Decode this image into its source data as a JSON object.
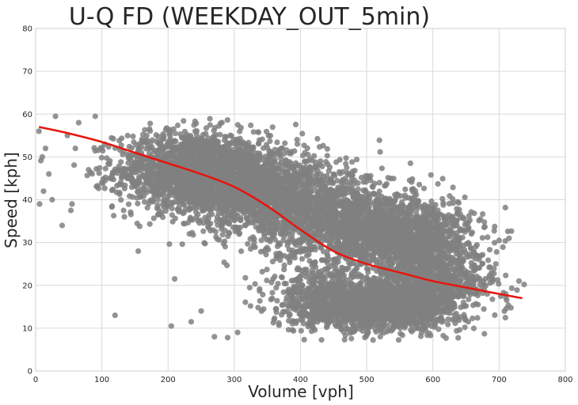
{
  "chart_data": {
    "type": "scatter",
    "title": "U-Q FD (WEEKDAY_OUT_5min)",
    "xlabel": "Volume [vph]",
    "ylabel": "Speed [kph]",
    "xlim": [
      0,
      800
    ],
    "ylim": [
      0,
      80
    ],
    "xticks": [
      0,
      100,
      200,
      300,
      400,
      500,
      600,
      700,
      800
    ],
    "yticks": [
      0,
      10,
      20,
      30,
      40,
      50,
      60,
      70,
      80
    ],
    "xtick_labels": [
      "0",
      "100",
      "200",
      "300",
      "400",
      "500",
      "600",
      "700",
      "800"
    ],
    "ytick_labels": [
      "0",
      "10",
      "20",
      "30",
      "40",
      "50",
      "60",
      "70",
      "80"
    ],
    "grid": true,
    "colors": {
      "points": "#808080",
      "fit": "#e8140c",
      "grid": "#d9d9d9",
      "frame": "#cccccc"
    },
    "point_clusters": [
      {
        "x_mean": 230,
        "x_sd": 55,
        "y_mean": 47,
        "y_sd": 4.5,
        "count": 1500
      },
      {
        "x_mean": 320,
        "x_sd": 55,
        "y_mean": 43,
        "y_sd": 5,
        "count": 1300
      },
      {
        "x_mean": 420,
        "x_sd": 55,
        "y_mean": 37,
        "y_sd": 5,
        "count": 1100
      },
      {
        "x_mean": 530,
        "x_sd": 50,
        "y_mean": 32,
        "y_sd": 5,
        "count": 1200
      },
      {
        "x_mean": 600,
        "x_sd": 40,
        "y_mean": 29,
        "y_sd": 5,
        "count": 500
      },
      {
        "x_mean": 520,
        "x_sd": 60,
        "y_mean": 15,
        "y_sd": 3,
        "count": 1400
      },
      {
        "x_mean": 430,
        "x_sd": 40,
        "y_mean": 18,
        "y_sd": 4,
        "count": 350
      },
      {
        "x_mean": 600,
        "x_sd": 45,
        "y_mean": 20,
        "y_sd": 3,
        "count": 500
      }
    ],
    "outlier_points": [
      [
        5,
        56
      ],
      [
        10,
        50
      ],
      [
        15,
        52
      ],
      [
        20,
        46
      ],
      [
        25,
        40
      ],
      [
        30,
        59.5
      ],
      [
        40,
        34
      ],
      [
        55,
        39
      ],
      [
        60,
        52
      ],
      [
        65,
        58
      ],
      [
        80,
        47
      ],
      [
        90,
        59.5
      ],
      [
        120,
        13
      ],
      [
        155,
        28
      ],
      [
        185,
        40
      ],
      [
        205,
        10.5
      ],
      [
        210,
        21.5
      ],
      [
        235,
        11.5
      ],
      [
        270,
        8
      ],
      [
        290,
        7.8
      ],
      [
        305,
        9
      ],
      [
        6,
        39
      ],
      [
        12,
        42
      ],
      [
        48,
        55
      ],
      [
        100,
        44
      ],
      [
        700,
        30.5
      ],
      [
        715,
        31
      ],
      [
        730,
        21
      ],
      [
        695,
        25
      ],
      [
        710,
        18
      ],
      [
        330,
        30
      ],
      [
        345,
        28
      ],
      [
        360,
        12
      ],
      [
        250,
        14
      ]
    ],
    "fit_line": {
      "x": [
        5,
        50,
        100,
        150,
        200,
        250,
        300,
        350,
        400,
        450,
        500,
        550,
        600,
        650,
        700,
        735
      ],
      "y": [
        57,
        55.5,
        53.5,
        51,
        48.5,
        46,
        43,
        38.5,
        33,
        28,
        25,
        23,
        21,
        19.5,
        18,
        17
      ]
    }
  }
}
